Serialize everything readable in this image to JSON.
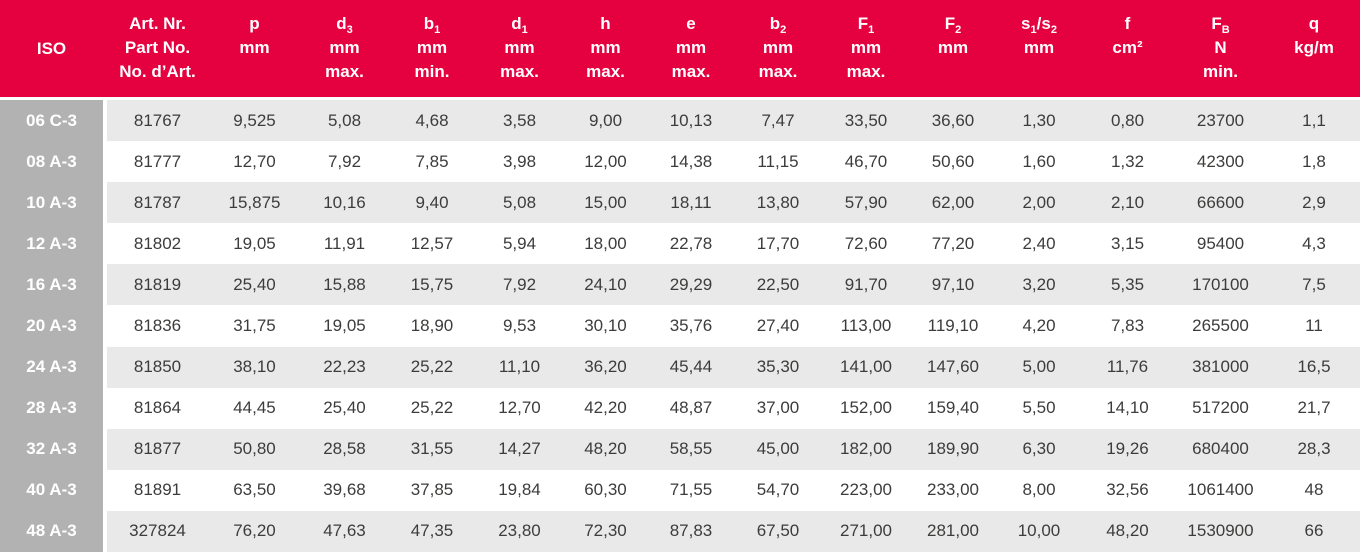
{
  "colors": {
    "header_background": "#e50040",
    "header_text": "#ffffff",
    "iso_column_background": "#b2b2b2",
    "stripe_row_background": "#e9e9e9",
    "plain_row_background": "#ffffff",
    "data_text": "#3c3c3b"
  },
  "table": {
    "columns": [
      {
        "id": "iso",
        "symbol": "ISO",
        "unit": "",
        "constraint": ""
      },
      {
        "id": "art",
        "symbol": "Art. Nr.",
        "unit": "Part No.",
        "constraint": "No. d’Art."
      },
      {
        "id": "p",
        "symbol": "p",
        "unit": "mm",
        "constraint": ""
      },
      {
        "id": "d3",
        "symbol": "d~3~",
        "unit": "mm",
        "constraint": "max."
      },
      {
        "id": "b1",
        "symbol": "b~1~",
        "unit": "mm",
        "constraint": "min."
      },
      {
        "id": "d1",
        "symbol": "d~1~",
        "unit": "mm",
        "constraint": "max."
      },
      {
        "id": "h",
        "symbol": "h",
        "unit": "mm",
        "constraint": "max."
      },
      {
        "id": "e",
        "symbol": "e",
        "unit": "mm",
        "constraint": "max."
      },
      {
        "id": "b2",
        "symbol": "b~2~",
        "unit": "mm",
        "constraint": "max."
      },
      {
        "id": "f1",
        "symbol": "F~1~",
        "unit": "mm",
        "constraint": "max."
      },
      {
        "id": "f2",
        "symbol": "F~2~",
        "unit": "mm",
        "constraint": ""
      },
      {
        "id": "s1s2",
        "symbol": "s~1~/s~2~",
        "unit": "mm",
        "constraint": ""
      },
      {
        "id": "f",
        "symbol": "f",
        "unit": "cm²",
        "constraint": ""
      },
      {
        "id": "fb",
        "symbol": "F~B~",
        "unit": "N",
        "constraint": "min."
      },
      {
        "id": "q",
        "symbol": "q",
        "unit": "kg/m",
        "constraint": ""
      }
    ],
    "rows": [
      {
        "iso": "06 C-3",
        "values": [
          "81767",
          "9,525",
          "5,08",
          "4,68",
          "3,58",
          "9,00",
          "10,13",
          "7,47",
          "33,50",
          "36,60",
          "1,30",
          "0,80",
          "23700",
          "1,1"
        ]
      },
      {
        "iso": "08 A-3",
        "values": [
          "81777",
          "12,70",
          "7,92",
          "7,85",
          "3,98",
          "12,00",
          "14,38",
          "11,15",
          "46,70",
          "50,60",
          "1,60",
          "1,32",
          "42300",
          "1,8"
        ]
      },
      {
        "iso": "10 A-3",
        "values": [
          "81787",
          "15,875",
          "10,16",
          "9,40",
          "5,08",
          "15,00",
          "18,11",
          "13,80",
          "57,90",
          "62,00",
          "2,00",
          "2,10",
          "66600",
          "2,9"
        ]
      },
      {
        "iso": "12 A-3",
        "values": [
          "81802",
          "19,05",
          "11,91",
          "12,57",
          "5,94",
          "18,00",
          "22,78",
          "17,70",
          "72,60",
          "77,20",
          "2,40",
          "3,15",
          "95400",
          "4,3"
        ]
      },
      {
        "iso": "16 A-3",
        "values": [
          "81819",
          "25,40",
          "15,88",
          "15,75",
          "7,92",
          "24,10",
          "29,29",
          "22,50",
          "91,70",
          "97,10",
          "3,20",
          "5,35",
          "170100",
          "7,5"
        ]
      },
      {
        "iso": "20 A-3",
        "values": [
          "81836",
          "31,75",
          "19,05",
          "18,90",
          "9,53",
          "30,10",
          "35,76",
          "27,40",
          "113,00",
          "119,10",
          "4,20",
          "7,83",
          "265500",
          "11"
        ]
      },
      {
        "iso": "24 A-3",
        "values": [
          "81850",
          "38,10",
          "22,23",
          "25,22",
          "11,10",
          "36,20",
          "45,44",
          "35,30",
          "141,00",
          "147,60",
          "5,00",
          "11,76",
          "381000",
          "16,5"
        ]
      },
      {
        "iso": "28 A-3",
        "values": [
          "81864",
          "44,45",
          "25,40",
          "25,22",
          "12,70",
          "42,20",
          "48,87",
          "37,00",
          "152,00",
          "159,40",
          "5,50",
          "14,10",
          "517200",
          "21,7"
        ]
      },
      {
        "iso": "32 A-3",
        "values": [
          "81877",
          "50,80",
          "28,58",
          "31,55",
          "14,27",
          "48,20",
          "58,55",
          "45,00",
          "182,00",
          "189,90",
          "6,30",
          "19,26",
          "680400",
          "28,3"
        ]
      },
      {
        "iso": "40 A-3",
        "values": [
          "81891",
          "63,50",
          "39,68",
          "37,85",
          "19,84",
          "60,30",
          "71,55",
          "54,70",
          "223,00",
          "233,00",
          "8,00",
          "32,56",
          "1061400",
          "48"
        ]
      },
      {
        "iso": "48 A-3",
        "values": [
          "327824",
          "76,20",
          "47,63",
          "47,35",
          "23,80",
          "72,30",
          "87,83",
          "67,50",
          "271,00",
          "281,00",
          "10,00",
          "48,20",
          "1530900",
          "66"
        ]
      }
    ]
  }
}
